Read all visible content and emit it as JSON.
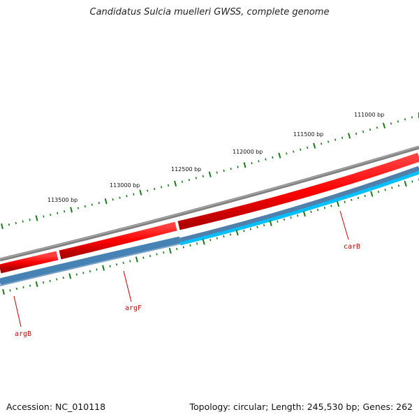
{
  "title": "Candidatus Sulcia muelleri GWSS, complete genome",
  "footer": {
    "accession": "Accession: NC_010118",
    "stats": "Topology: circular; Length: 245,530 bp; Genes: 262"
  },
  "scale_labels": [
    "111000 bp",
    "111500 bp",
    "112000 bp",
    "112500 bp",
    "113000 bp",
    "113500 bp"
  ],
  "genes": [
    {
      "name": "carB",
      "strand": "minus"
    },
    {
      "name": "argF",
      "strand": "minus"
    },
    {
      "name": "argB",
      "strand": "minus"
    }
  ],
  "colors": {
    "backbone": "#808080",
    "forward_gene": "#ff0000",
    "reverse_gene": "#4682b4",
    "reverse_gene_light": "#00bfff",
    "tick": "#1a7a1a",
    "label": "#cc0000"
  }
}
